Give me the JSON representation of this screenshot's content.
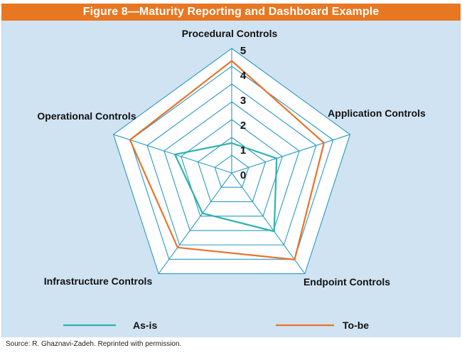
{
  "figure": {
    "title": "Figure 8—Maturity Reporting and Dashboard Example",
    "source": "Source:  R. Ghaznavi-Zadeh. Reprinted with permission."
  },
  "colors": {
    "header": "#e87722",
    "panel": "#d0e3f2",
    "web_fill": "#ffffff",
    "web_line": "#2a9ac2",
    "as_is": "#2cb3b0",
    "to_be": "#e8732a"
  },
  "chart_data": {
    "type": "radar",
    "title": "",
    "axes": [
      "Procedural Controls",
      "Application Controls",
      "Endpoint Controls",
      "Infrastructure Controls",
      "Operational Controls"
    ],
    "scale": {
      "min": 0,
      "max": 5,
      "ticks": [
        "0",
        "1",
        "2",
        "3",
        "4",
        "5"
      ],
      "gridlines": 7
    },
    "series": [
      {
        "name": "As-is",
        "values": [
          1.2,
          1.9,
          2.9,
          2.0,
          2.4
        ]
      },
      {
        "name": "To-be",
        "values": [
          4.5,
          3.9,
          4.3,
          3.7,
          4.3
        ]
      }
    ],
    "legend_placement": "bottom"
  }
}
